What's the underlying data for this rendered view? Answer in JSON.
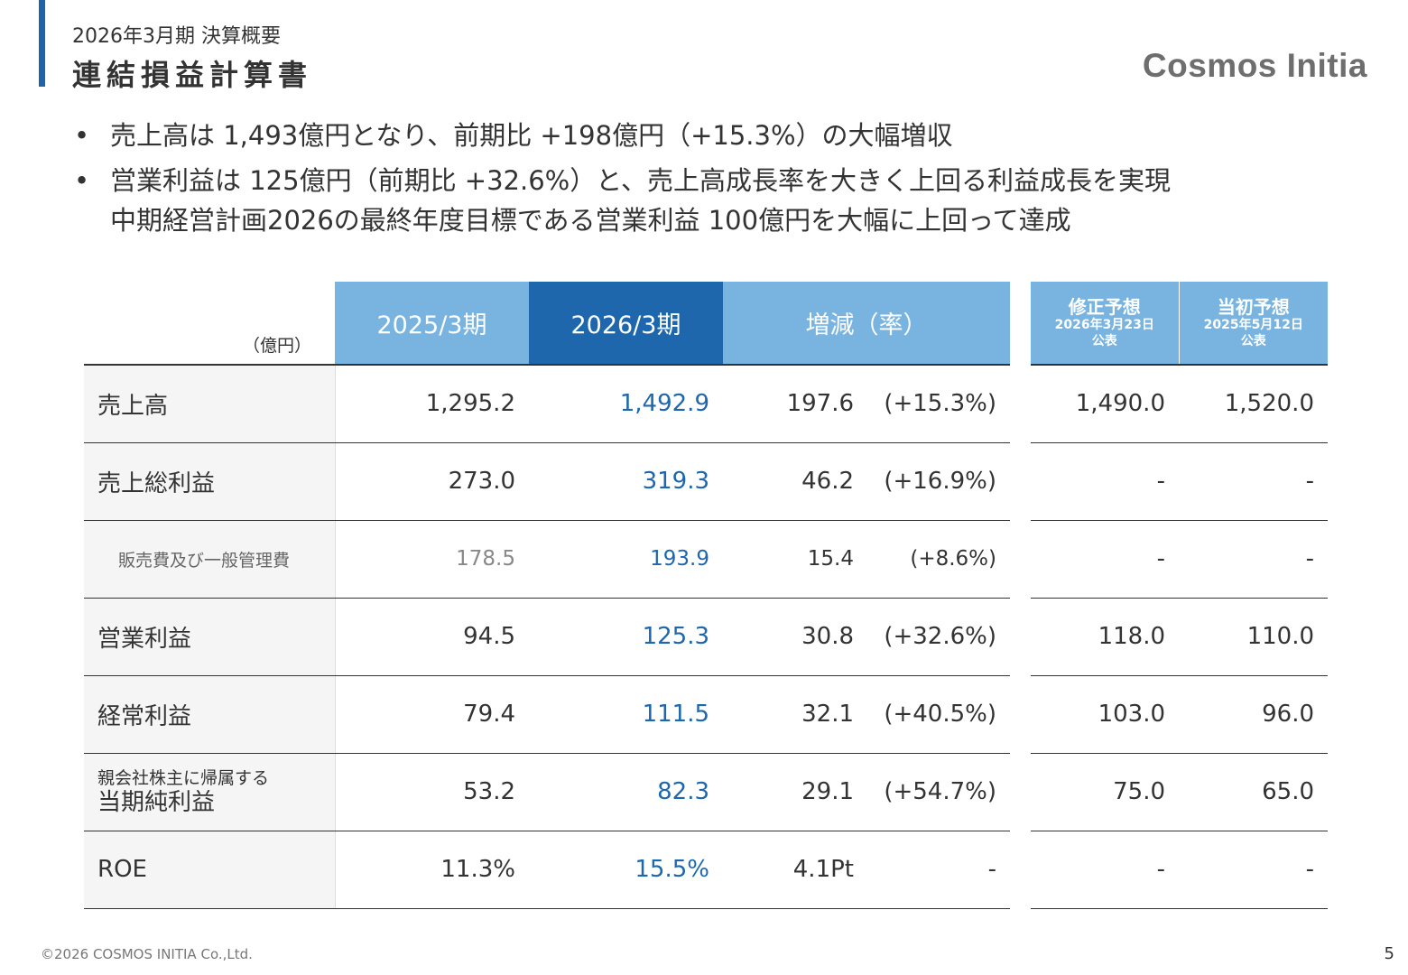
{
  "header": {
    "subtitle": "2026年3月期 決算概要",
    "title": "連結損益計算書",
    "logo": "Cosmos Initia",
    "accent_color": "#1e64a8"
  },
  "bullets": [
    {
      "lines": [
        "売上高は 1,493億円となり、前期比 +198億円（+15.3%）の大幅増収"
      ]
    },
    {
      "lines": [
        "営業利益は 125億円（前期比 +32.6%）と、売上高成長率を大きく上回る利益成長を実現",
        "中期経営計画2026の最終年度目標である営業利益 100億円を大幅に上回って達成"
      ]
    }
  ],
  "table": {
    "unit": "（億円）",
    "columns": {
      "prev": "2025/3期",
      "cur": "2026/3期",
      "diff": "増減（率）",
      "fc_revised": {
        "title": "修正予想",
        "date": "2026年3月23日",
        "note": "公表"
      },
      "fc_initial": {
        "title": "当初予想",
        "date": "2025年5月12日",
        "note": "公表"
      }
    },
    "rows": [
      {
        "label": "売上高",
        "prev": "1,295.2",
        "cur": "1,492.9",
        "diff": "197.6",
        "rate": "(+15.3%)",
        "fc_revised": "1,490.0",
        "fc_initial": "1,520.0"
      },
      {
        "label": "売上総利益",
        "prev": "273.0",
        "cur": "319.3",
        "diff": "46.2",
        "rate": "(+16.9%)",
        "fc_revised": "-",
        "fc_initial": "-"
      },
      {
        "label": "販売費及び一般管理費",
        "prev": "178.5",
        "cur": "193.9",
        "diff": "15.4",
        "rate": "(+8.6%)",
        "fc_revised": "-",
        "fc_initial": "-"
      },
      {
        "label": "営業利益",
        "prev": "94.5",
        "cur": "125.3",
        "diff": "30.8",
        "rate": "(+32.6%)",
        "fc_revised": "118.0",
        "fc_initial": "110.0"
      },
      {
        "label": "経常利益",
        "prev": "79.4",
        "cur": "111.5",
        "diff": "32.1",
        "rate": "(+40.5%)",
        "fc_revised": "103.0",
        "fc_initial": "96.0"
      },
      {
        "label_top": "親会社株主に帰属する",
        "label": "当期純利益",
        "prev": "53.2",
        "cur": "82.3",
        "diff": "29.1",
        "rate": "(+54.7%)",
        "fc_revised": "75.0",
        "fc_initial": "65.0"
      },
      {
        "label": "ROE",
        "prev": "11.3%",
        "cur": "15.5%",
        "diff": "4.1Pt",
        "rate": "-",
        "fc_revised": "-",
        "fc_initial": "-"
      }
    ],
    "colors": {
      "header_light": "#79b4e0",
      "header_dark": "#1f67ad",
      "current_value": "#1f67ad",
      "label_bg": "#f5f5f5"
    }
  },
  "footer": {
    "copyright": "©2026 COSMOS INITIA Co.,Ltd.",
    "page_number": "5"
  }
}
